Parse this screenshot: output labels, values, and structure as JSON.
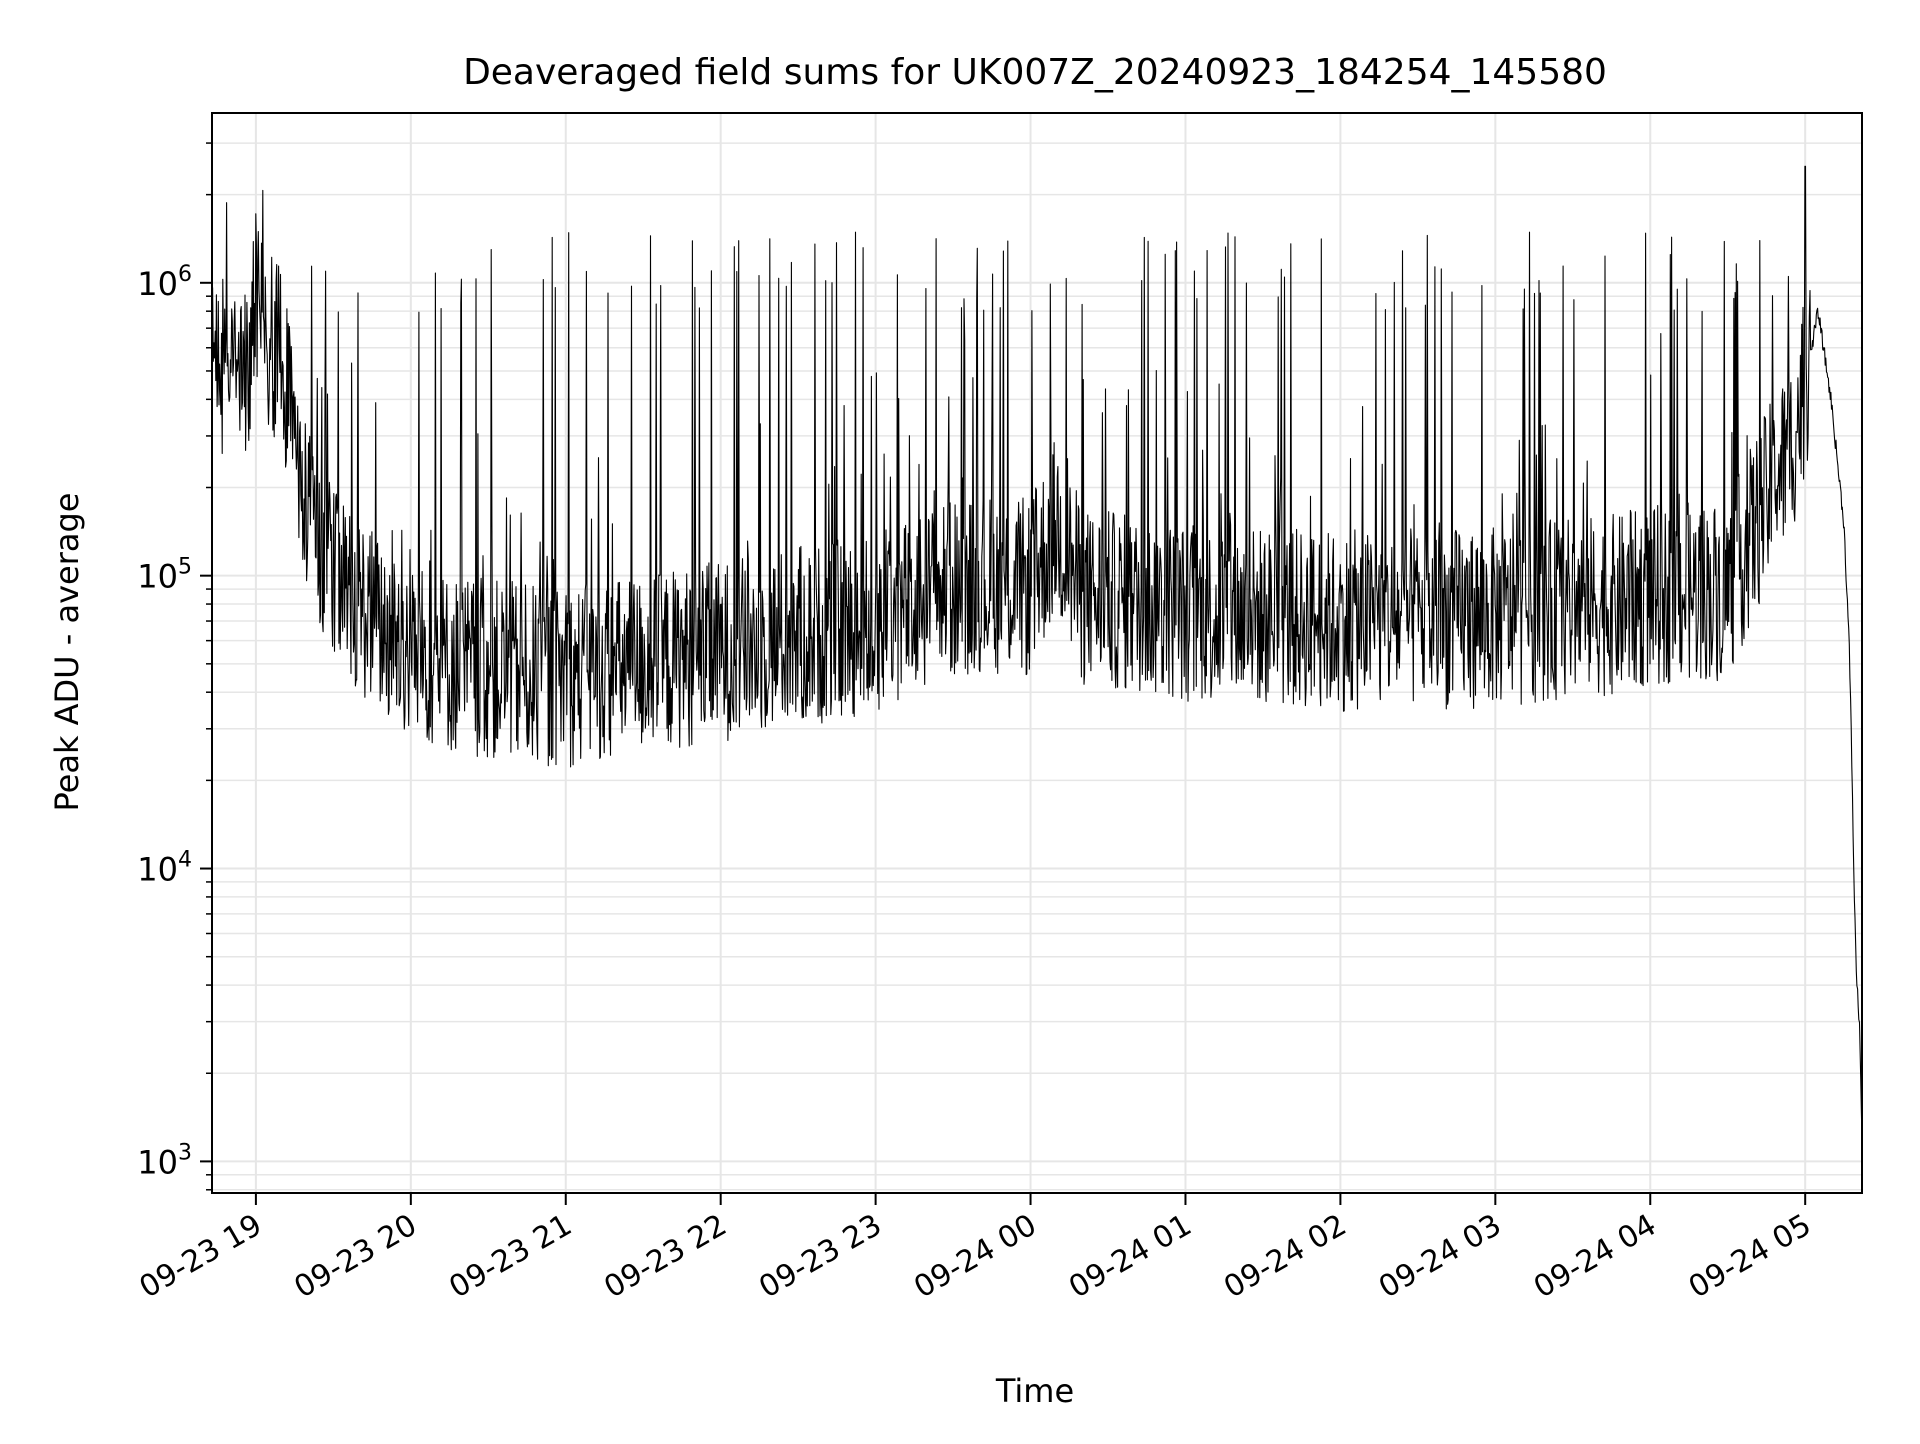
{
  "chart_data": {
    "type": "line",
    "title": "Deaveraged field sums for UK007Z_20240923_184254_145580",
    "xlabel": "Time",
    "ylabel": "Peak ADU - average",
    "yscale": "log",
    "xlim": [
      "2024-09-23 18:43",
      "2024-09-24 05:22"
    ],
    "ylim": [
      780,
      3800000
    ],
    "x_ticks": [
      "09-23 19",
      "09-23 20",
      "09-23 21",
      "09-23 22",
      "09-23 23",
      "09-24 00",
      "09-24 01",
      "09-24 02",
      "09-24 03",
      "09-24 04",
      "09-24 05"
    ],
    "x_tick_times": [
      "2024-09-23 19:00",
      "2024-09-23 20:00",
      "2024-09-23 21:00",
      "2024-09-23 22:00",
      "2024-09-23 23:00",
      "2024-09-24 00:00",
      "2024-09-24 01:00",
      "2024-09-24 02:00",
      "2024-09-24 03:00",
      "2024-09-24 04:00",
      "2024-09-24 05:00"
    ],
    "y_ticks": [
      {
        "base": "10",
        "exp": "3",
        "value": 1000
      },
      {
        "base": "10",
        "exp": "4",
        "value": 10000
      },
      {
        "base": "10",
        "exp": "5",
        "value": 100000
      },
      {
        "base": "10",
        "exp": "6",
        "value": 1000000
      }
    ],
    "grid": true,
    "line_color": "#000000",
    "grid_color": "#e6e6e6",
    "series": [
      {
        "x": [
          "2024-09-23 18:43",
          "2024-09-23 18:50",
          "2024-09-23 18:57",
          "2024-09-23 19:00",
          "2024-09-23 19:05",
          "2024-09-23 19:10",
          "2024-09-23 19:15",
          "2024-09-23 19:20",
          "2024-09-23 19:25",
          "2024-09-23 19:30",
          "2024-09-23 19:40",
          "2024-09-23 19:50",
          "2024-09-23 20:00",
          "2024-09-23 20:15",
          "2024-09-23 20:30",
          "2024-09-23 20:45",
          "2024-09-23 21:00",
          "2024-09-23 21:30",
          "2024-09-23 22:00",
          "2024-09-23 22:30",
          "2024-09-23 23:00",
          "2024-09-23 23:20",
          "2024-09-23 23:40",
          "2024-09-24 00:00",
          "2024-09-24 00:10",
          "2024-09-24 00:20",
          "2024-09-24 01:00",
          "2024-09-24 02:00",
          "2024-09-24 03:00",
          "2024-09-24 03:30",
          "2024-09-24 03:50",
          "2024-09-24 04:00",
          "2024-09-24 04:30",
          "2024-09-24 04:45",
          "2024-09-24 04:55",
          "2024-09-24 05:00",
          "2024-09-24 05:05",
          "2024-09-24 05:10",
          "2024-09-24 05:15",
          "2024-09-24 05:17",
          "2024-09-24 05:18",
          "2024-09-24 05:19",
          "2024-09-24 05:20",
          "2024-09-24 05:21",
          "2024-09-24 05:22"
        ],
        "values": [
          550000,
          480000,
          520000,
          1000000,
          620000,
          550000,
          300000,
          170000,
          120000,
          100000,
          80000,
          65000,
          55000,
          50000,
          48000,
          46000,
          45000,
          50000,
          55000,
          62000,
          68000,
          85000,
          95000,
          90000,
          150000,
          85000,
          75000,
          70000,
          72000,
          78000,
          80000,
          85000,
          90000,
          180000,
          280000,
          450000,
          800000,
          400000,
          150000,
          60000,
          25000,
          8000,
          4000,
          3000,
          1200
        ],
        "spike_peak": 1500000
      }
    ]
  }
}
